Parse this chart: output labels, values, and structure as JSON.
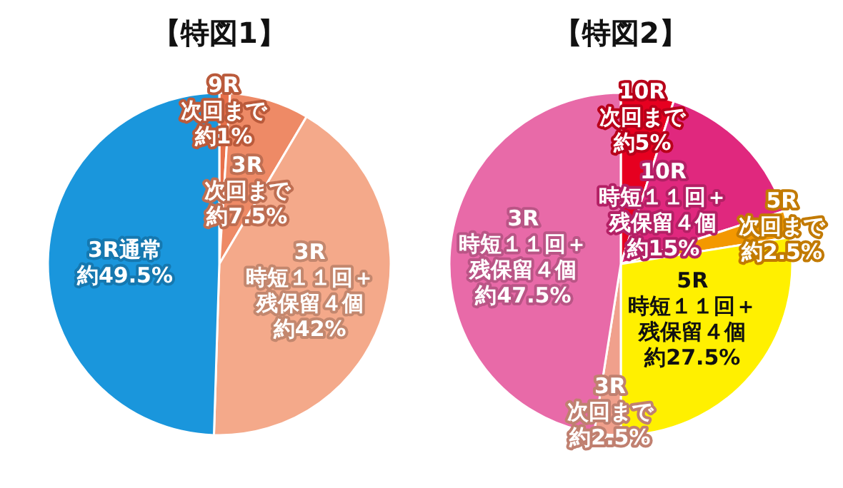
{
  "chart_data": [
    {
      "type": "pie",
      "title": "【特図1】",
      "categories": [
        "9R\n次回まで",
        "3R\n次回まで",
        "3R\n時短１１回＋残保留４個",
        "3R通常"
      ],
      "values": [
        1,
        7.5,
        42,
        49.5
      ],
      "value_labels": [
        "約1%",
        "約7.5%",
        "約42%",
        "約49.5%"
      ],
      "colors": [
        "#e8704a",
        "#ee8a66",
        "#f4a98a",
        "#1a96dc"
      ]
    },
    {
      "type": "pie",
      "title": "【特図2】",
      "categories": [
        "10R\n次回まで",
        "10R\n時短１１回＋残保留４個",
        "5R\n次回まで",
        "5R\n時短１１回＋残保留４個",
        "3R\n次回まで",
        "3R\n時短１１回＋残保留４個"
      ],
      "values": [
        5,
        15,
        2.5,
        27.5,
        2.5,
        47.5
      ],
      "value_labels": [
        "約5%",
        "約15%",
        "約2.5%",
        "約27.5%",
        "約2.5%",
        "約47.5%"
      ],
      "colors": [
        "#e60020",
        "#e0287e",
        "#f39800",
        "#fff000",
        "#f0a08c",
        "#e86aa8"
      ]
    }
  ]
}
